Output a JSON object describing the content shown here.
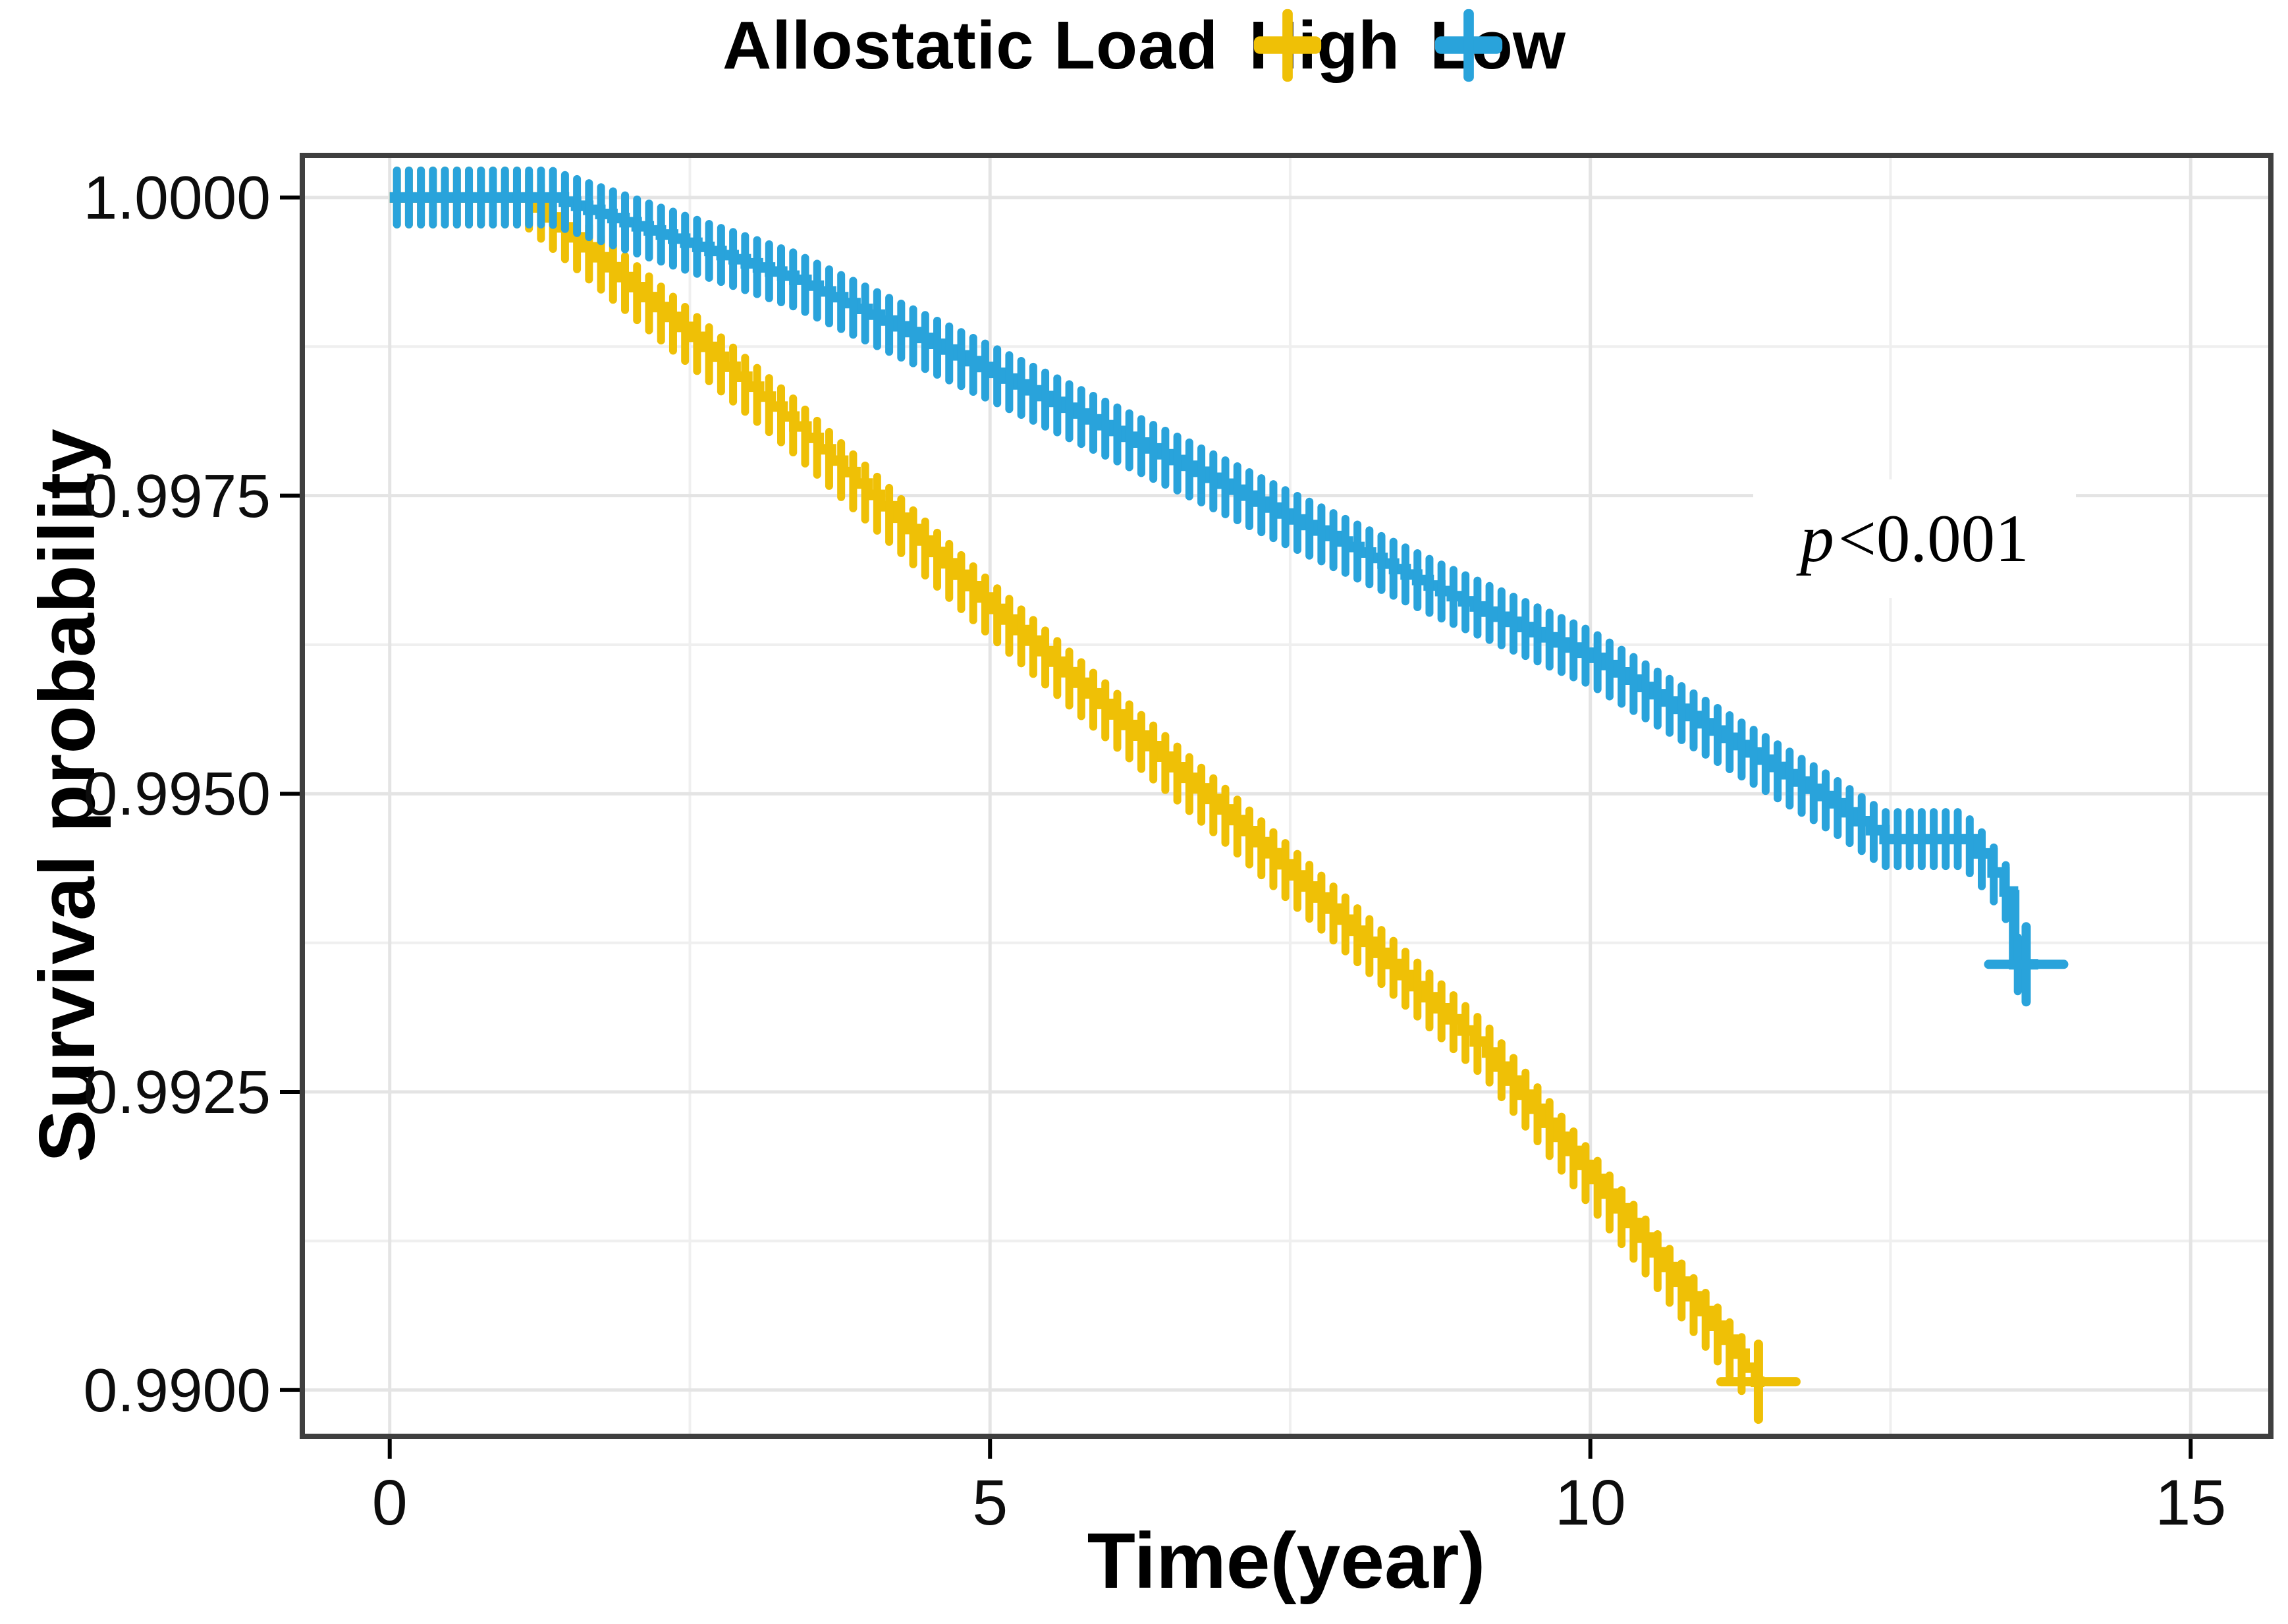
{
  "legend": {
    "title": "Allostatic Load",
    "items": [
      {
        "label": "High",
        "color": "#EFC006"
      },
      {
        "label": "Low",
        "color": "#29A3DB"
      }
    ]
  },
  "axes": {
    "x": {
      "title": "Time(year)",
      "domain": [
        -0.75,
        15.69
      ],
      "major_ticks": [
        {
          "v": 0,
          "label": "0"
        },
        {
          "v": 5,
          "label": "5"
        },
        {
          "v": 10,
          "label": "10"
        },
        {
          "v": 15,
          "label": "15"
        }
      ],
      "minor_ticks": [
        2.5,
        7.5,
        12.5
      ]
    },
    "y": {
      "title": "Survival probability",
      "domain": [
        0.98959,
        1.000375
      ],
      "major_ticks": [
        {
          "v": 1.0,
          "label": "1.0000"
        },
        {
          "v": 0.9975,
          "label": "0.9975"
        },
        {
          "v": 0.995,
          "label": "0.9950"
        },
        {
          "v": 0.9925,
          "label": "0.9925"
        },
        {
          "v": 0.99,
          "label": "0.9900"
        }
      ],
      "minor_ticks": [
        0.99875,
        0.99625,
        0.99375,
        0.99125
      ]
    }
  },
  "annotation": {
    "prefix": "p",
    "text": "<0.001"
  },
  "styles": {
    "background": "#FFFFFF",
    "grid_major_color": "#E4E4E4",
    "grid_minor_color": "#EFEFEF",
    "panel_border_color": "#3F3F3F",
    "text_color": "#000000"
  },
  "chart_data": {
    "type": "line",
    "subtype": "kaplan-meier-step",
    "title": "",
    "xlabel": "Time(year)",
    "ylabel": "Survival probability",
    "xlim": [
      0,
      15
    ],
    "ylim": [
      0.99,
      1.0
    ],
    "grid": true,
    "legend_position": "top",
    "legend_title": "Allostatic Load",
    "annotation": "p<0.001",
    "annotation_xy": [
      12.7,
      0.9971
    ],
    "series": [
      {
        "name": "High",
        "color": "#EFC006",
        "step_points": [
          [
            0,
            1.0
          ],
          [
            1.12,
            1.0
          ],
          [
            3.37,
            0.99808
          ],
          [
            5,
            0.99655
          ],
          [
            7,
            0.99478
          ],
          [
            9.14,
            0.99283
          ],
          [
            10,
            0.99177
          ],
          [
            11,
            0.99054
          ],
          [
            11.38,
            0.99007
          ],
          [
            11.45,
            0.99007
          ]
        ],
        "censor_from": 0.06,
        "censor_to": 11.26,
        "censor_interval": 0.1,
        "terminal_censor": [
          11.4,
          0.99007
        ]
      },
      {
        "name": "Low",
        "color": "#29A3DB",
        "step_points": [
          [
            0,
            1.0
          ],
          [
            1.35,
            1.0
          ],
          [
            3.37,
            0.99931
          ],
          [
            5,
            0.99853
          ],
          [
            6.6,
            0.99775
          ],
          [
            7.5,
            0.9973
          ],
          [
            8.75,
            0.9967
          ],
          [
            10,
            0.99614
          ],
          [
            11,
            0.99553
          ],
          [
            12,
            0.99492
          ],
          [
            12.45,
            0.99462
          ],
          [
            13.1,
            0.99462
          ],
          [
            13.22,
            0.9945
          ],
          [
            13.35,
            0.99434
          ],
          [
            13.45,
            0.99418
          ],
          [
            13.52,
            0.99415
          ],
          [
            13.53,
            0.99357
          ],
          [
            13.73,
            0.99357
          ]
        ],
        "censor_from": 0.06,
        "censor_to": 13.58,
        "censor_interval": 0.1,
        "terminal_censor": [
          13.63,
          0.99357
        ]
      }
    ]
  }
}
